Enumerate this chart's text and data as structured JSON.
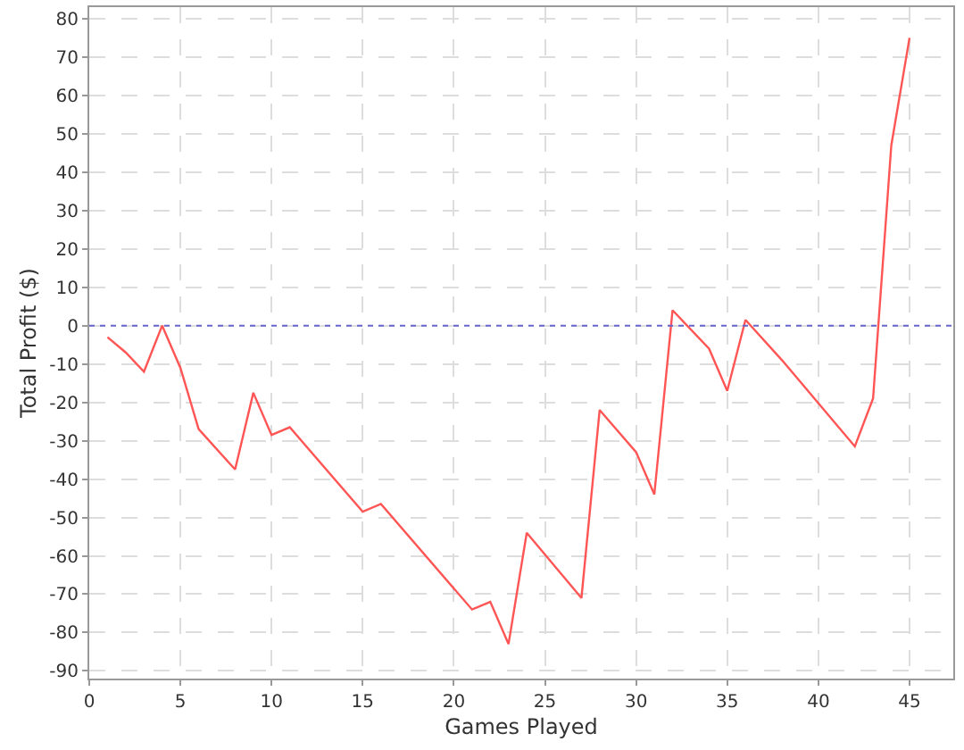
{
  "chart_data": {
    "type": "line",
    "xlabel": "Games Played",
    "ylabel": "Total Profit ($)",
    "x": [
      1,
      2,
      3,
      4,
      5,
      6,
      8,
      9,
      10,
      11,
      15,
      16,
      21,
      22,
      23,
      24,
      27,
      28,
      30,
      31,
      32,
      34,
      35,
      36,
      38,
      42,
      43,
      44,
      45
    ],
    "series": [
      {
        "color": "#ff5555",
        "values": [
          -3,
          -7,
          -12,
          0,
          -11,
          -27,
          -37.5,
          -17.5,
          -28.5,
          -26.5,
          -48.5,
          -46.5,
          -74,
          -72,
          -83,
          -54,
          -71,
          -22,
          -33,
          -44,
          4,
          -6,
          -17,
          1.5,
          -9,
          -31.5,
          -19,
          47,
          75
        ]
      }
    ],
    "xlim": [
      0,
      47.4
    ],
    "xticks": [
      0,
      5,
      10,
      15,
      20,
      25,
      30,
      35,
      40,
      45
    ],
    "ylim": [
      -92,
      83
    ],
    "yticks": [
      -90,
      -80,
      -70,
      -60,
      -50,
      -40,
      -30,
      -20,
      -10,
      0,
      10,
      20,
      30,
      40,
      50,
      60,
      70,
      80
    ],
    "grid": true,
    "legend": false,
    "marker": "none",
    "line_style": "solid",
    "ref_lines": [
      {
        "axis": "y",
        "value": 0,
        "color": "#6666cc",
        "line_style": "dotted"
      }
    ]
  }
}
